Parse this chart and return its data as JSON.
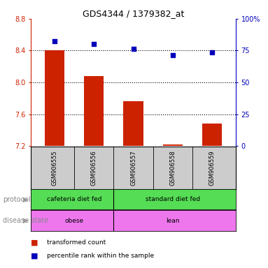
{
  "title": "GDS4344 / 1379382_at",
  "samples": [
    "GSM906555",
    "GSM906556",
    "GSM906557",
    "GSM906558",
    "GSM906559"
  ],
  "bar_values": [
    8.4,
    8.08,
    7.76,
    7.22,
    7.48
  ],
  "scatter_values": [
    8.52,
    8.48,
    8.42,
    8.34,
    8.38
  ],
  "ylim_left": [
    7.2,
    8.8
  ],
  "yticks_left": [
    7.2,
    7.6,
    8.0,
    8.4,
    8.8
  ],
  "yticks_right": [
    0,
    25,
    50,
    75,
    100
  ],
  "bar_color": "#cc2200",
  "scatter_color": "#0000bb",
  "bar_width": 0.5,
  "protocol_labels": [
    "cafeteria diet fed",
    "standard diet fed"
  ],
  "protocol_color": "#55dd55",
  "disease_labels": [
    "obese",
    "lean"
  ],
  "disease_color": "#ee77ee",
  "legend_red": "transformed count",
  "legend_blue": "percentile rank within the sample",
  "protocol_row_label": "protocol",
  "disease_row_label": "disease state",
  "sample_box_color": "#cccccc",
  "fig_bg": "#ffffff"
}
